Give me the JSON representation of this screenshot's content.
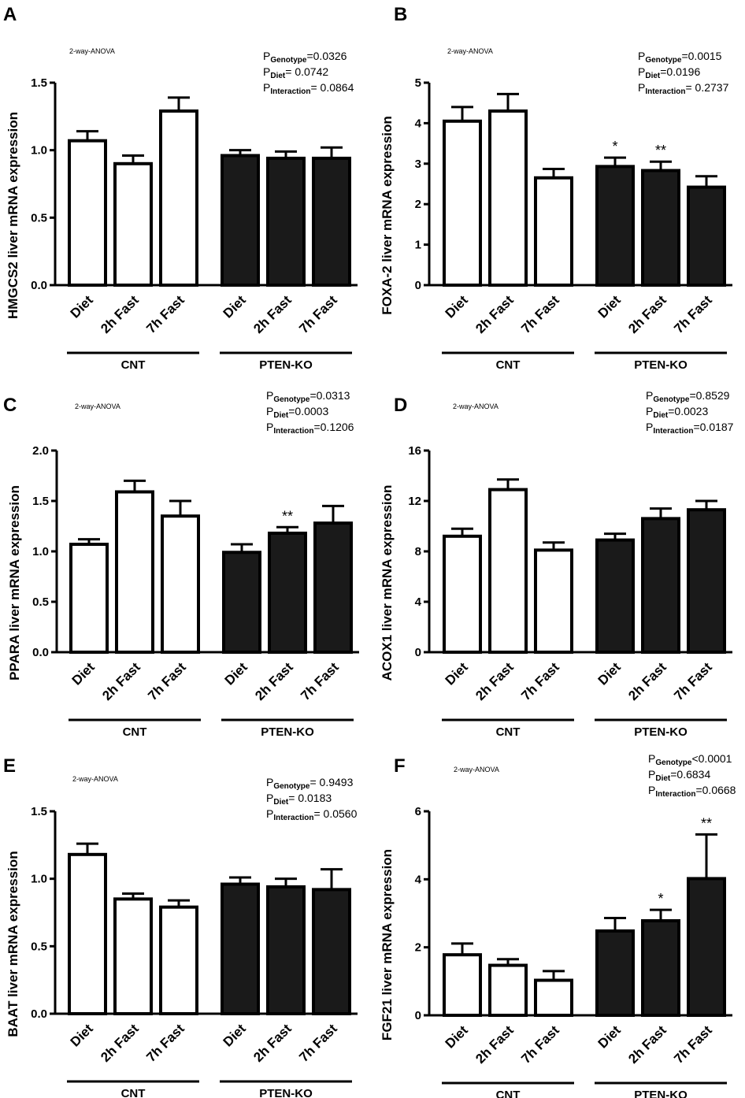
{
  "chart_data": [
    {
      "panel": "A",
      "type": "bar",
      "anova_label": "2-way-ANOVA",
      "stats": [
        {
          "p": "P",
          "sub": "Genotype",
          "val": "=0.0326"
        },
        {
          "p": "P",
          "sub": "Diet",
          "val": "= 0.0742"
        },
        {
          "p": "P",
          "sub": "Interaction",
          "val": "= 0.0864"
        }
      ],
      "ylabel": "HMGCS2 liver mRNA expression",
      "ylim": [
        0,
        1.5
      ],
      "yticks": [
        "0.0",
        "0.5",
        "1.0",
        "1.5"
      ],
      "categories": [
        "Diet",
        "2h Fast",
        "7h Fast",
        "Diet",
        "2h Fast",
        "7h Fast"
      ],
      "groups": [
        "CNT",
        "PTEN-KO"
      ],
      "values": [
        1.07,
        0.9,
        1.29,
        0.96,
        0.94,
        0.94
      ],
      "errors": [
        0.07,
        0.06,
        0.1,
        0.04,
        0.05,
        0.08
      ],
      "significance": [
        "",
        "",
        "",
        "",
        "",
        ""
      ]
    },
    {
      "panel": "B",
      "type": "bar",
      "anova_label": "2-way-ANOVA",
      "stats": [
        {
          "p": "P",
          "sub": "Genotype",
          "val": "=0.0015"
        },
        {
          "p": "P",
          "sub": "Diet",
          "val": "=0.0196"
        },
        {
          "p": "P",
          "sub": "Interaction",
          "val": "= 0.2737"
        }
      ],
      "ylabel": "FOXA-2 liver mRNA expression",
      "ylim": [
        0,
        5
      ],
      "yticks": [
        "0",
        "1",
        "2",
        "3",
        "4",
        "5"
      ],
      "categories": [
        "Diet",
        "2h Fast",
        "7h Fast",
        "Diet",
        "2h Fast",
        "7h Fast"
      ],
      "groups": [
        "CNT",
        "PTEN-KO"
      ],
      "values": [
        4.05,
        4.3,
        2.65,
        2.93,
        2.83,
        2.42
      ],
      "errors": [
        0.35,
        0.42,
        0.22,
        0.22,
        0.22,
        0.27
      ],
      "significance": [
        "",
        "",
        "",
        "*",
        "**",
        ""
      ]
    },
    {
      "panel": "C",
      "type": "bar",
      "anova_label": "2-way-ANOVA",
      "stats": [
        {
          "p": "P",
          "sub": "Genotype",
          "val": "=0.0313"
        },
        {
          "p": "P",
          "sub": "Diet",
          "val": "=0.0003"
        },
        {
          "p": "P",
          "sub": "Interaction",
          "val": "=0.1206"
        }
      ],
      "ylabel": "PPARA liver mRNA expression",
      "ylim": [
        0,
        2.0
      ],
      "yticks": [
        "0.0",
        "0.5",
        "1.0",
        "1.5",
        "2.0"
      ],
      "categories": [
        "Diet",
        "2h Fast",
        "7h Fast",
        "Diet",
        "2h Fast",
        "7h Fast"
      ],
      "groups": [
        "CNT",
        "PTEN-KO"
      ],
      "values": [
        1.07,
        1.59,
        1.35,
        0.99,
        1.18,
        1.28
      ],
      "errors": [
        0.05,
        0.11,
        0.15,
        0.08,
        0.06,
        0.17
      ],
      "significance": [
        "",
        "",
        "",
        "",
        "**",
        ""
      ]
    },
    {
      "panel": "D",
      "type": "bar",
      "anova_label": "2-way-ANOVA",
      "stats": [
        {
          "p": "P",
          "sub": "Genotype",
          "val": "=0.8529"
        },
        {
          "p": "P",
          "sub": "Diet",
          "val": "=0.0023"
        },
        {
          "p": "P",
          "sub": "Interaction",
          "val": "=0.0187"
        }
      ],
      "ylabel": "ACOX1 liver mRNA expression",
      "ylim": [
        0,
        16
      ],
      "yticks": [
        "0",
        "4",
        "8",
        "12",
        "16"
      ],
      "categories": [
        "Diet",
        "2h Fast",
        "7h Fast",
        "Diet",
        "2h Fast",
        "7h Fast"
      ],
      "groups": [
        "CNT",
        "PTEN-KO"
      ],
      "values": [
        9.2,
        12.9,
        8.1,
        8.9,
        10.6,
        11.3
      ],
      "errors": [
        0.6,
        0.8,
        0.6,
        0.5,
        0.8,
        0.7
      ],
      "significance": [
        "",
        "",
        "",
        "",
        "",
        ""
      ]
    },
    {
      "panel": "E",
      "type": "bar",
      "anova_label": "2-way-ANOVA",
      "stats": [
        {
          "p": "P",
          "sub": "Genotype",
          "val": "= 0.9493"
        },
        {
          "p": "P",
          "sub": "Diet",
          "val": "= 0.0183"
        },
        {
          "p": "P",
          "sub": "Interaction",
          "val": "= 0.0560"
        }
      ],
      "ylabel": "BAAT liver mRNA expression",
      "ylim": [
        0,
        1.5
      ],
      "yticks": [
        "0.0",
        "0.5",
        "1.0",
        "1.5"
      ],
      "categories": [
        "Diet",
        "2h Fast",
        "7h Fast",
        "Diet",
        "2h Fast",
        "7h Fast"
      ],
      "groups": [
        "CNT",
        "PTEN-KO"
      ],
      "values": [
        1.18,
        0.85,
        0.79,
        0.96,
        0.94,
        0.92
      ],
      "errors": [
        0.08,
        0.04,
        0.05,
        0.05,
        0.06,
        0.15
      ],
      "significance": [
        "",
        "",
        "",
        "",
        "",
        ""
      ]
    },
    {
      "panel": "F",
      "type": "bar",
      "anova_label": "2-way-ANOVA",
      "stats": [
        {
          "p": "P",
          "sub": "Genotype",
          "val": "<0.0001"
        },
        {
          "p": "P",
          "sub": "Diet",
          "val": "=0.6834"
        },
        {
          "p": "P",
          "sub": "Interaction",
          "val": "=0.0668"
        }
      ],
      "ylabel": "FGF21 liver mRNA expression",
      "ylim": [
        0,
        6
      ],
      "yticks": [
        "0",
        "2",
        "4",
        "6"
      ],
      "categories": [
        "Diet",
        "2h Fast",
        "7h Fast",
        "Diet",
        "2h Fast",
        "7h Fast"
      ],
      "groups": [
        "CNT",
        "PTEN-KO"
      ],
      "values": [
        1.78,
        1.47,
        1.03,
        2.48,
        2.78,
        4.02
      ],
      "errors": [
        0.33,
        0.18,
        0.27,
        0.38,
        0.32,
        1.3
      ],
      "significance": [
        "",
        "",
        "",
        "",
        "*",
        "**"
      ]
    }
  ],
  "colors": {
    "cnt_fill": "#ffffff",
    "ko_fill": "#1a1a1a",
    "stroke": "#000000"
  }
}
